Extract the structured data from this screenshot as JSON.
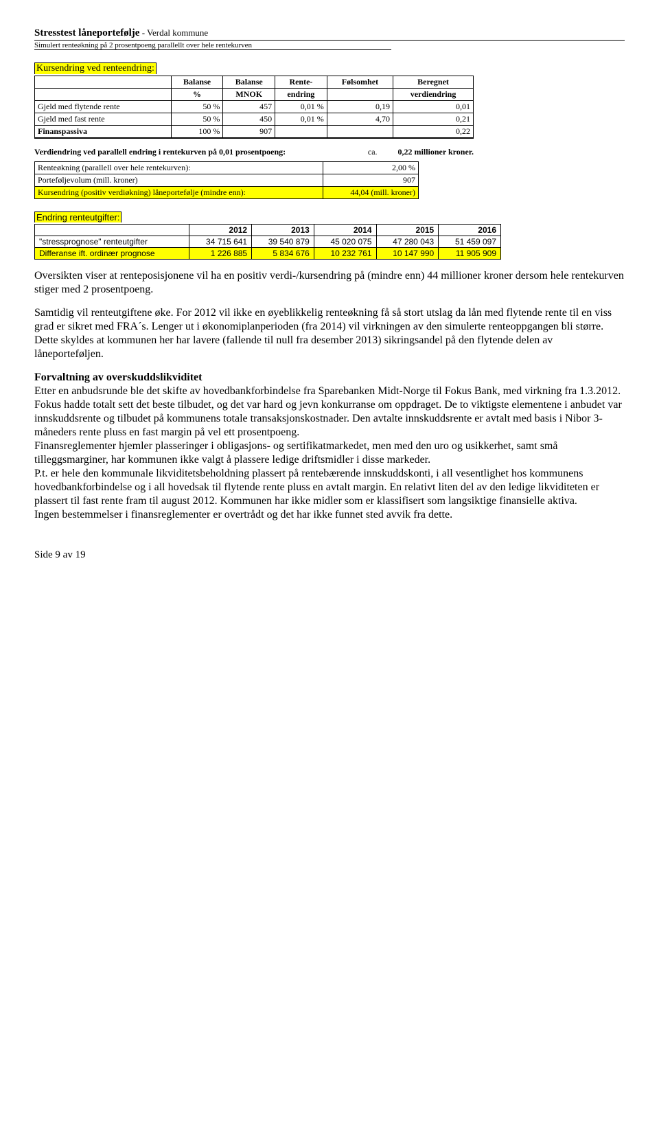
{
  "header": {
    "title_main": "Stresstest låneportefølje",
    "title_sub": " - Verdal kommune",
    "subtitle": "Simulert renteøkning på 2 prosentpoeng parallellt over hele rentekurven"
  },
  "kursendring": {
    "heading": "Kursendring ved renteendring:",
    "cols1": [
      "Balanse",
      "Balanse",
      "Rente-",
      "Følsomhet",
      "Beregnet"
    ],
    "cols2": [
      "%",
      "MNOK",
      "endring",
      "",
      "verdiendring"
    ],
    "rows": [
      {
        "label": "Gjeld med flytende rente",
        "c": [
          "50 %",
          "457",
          "0,01 %",
          "0,19",
          "0,01"
        ]
      },
      {
        "label": "Gjeld med fast rente",
        "c": [
          "50 %",
          "450",
          "0,01 %",
          "4,70",
          "0,21"
        ]
      }
    ],
    "finans": {
      "label": "Finanspassiva",
      "c": [
        "100 %",
        "907",
        "",
        "",
        "0,22"
      ]
    }
  },
  "verdiendring": {
    "label": "Verdiendring ved parallell endring i rentekurven på 0,01 prosentpoeng:",
    "ca": "ca.",
    "val": "0,22 millioner kroner."
  },
  "params": {
    "rows": [
      {
        "label": "Renteøkning (parallell over hele rentekurven):",
        "val": "2,00 %"
      },
      {
        "label": "Porteføljevolum (mill. kroner)",
        "val": "907"
      }
    ],
    "kurs": {
      "label": "Kursendring (positiv verdiøkning) låneportefølje (mindre enn):",
      "val": "44,04 (mill. kroner)"
    }
  },
  "endring": {
    "heading": "Endring renteutgifter:",
    "years": [
      "2012",
      "2013",
      "2014",
      "2015",
      "2016"
    ],
    "rows": [
      {
        "label": "\"stressprognose\" renteutgifter",
        "v": [
          "34 715 641",
          "39 540 879",
          "45 020 075",
          "47 280 043",
          "51 459 097"
        ],
        "yl": false
      },
      {
        "label": "Differanse ift. ordinær prognose",
        "v": [
          "1 226 885",
          "5 834 676",
          "10 232 761",
          "10 147 990",
          "11 905 909"
        ],
        "yl": true
      }
    ]
  },
  "body": {
    "p1": "Oversikten viser at renteposisjonene vil ha en positiv verdi-/kursendring på (mindre enn) 44 millioner kroner dersom hele rentekurven stiger med 2 prosentpoeng.",
    "p2": "Samtidig vil renteutgiftene øke. For 2012 vil ikke en øyeblikkelig renteøkning få så stort utslag da lån med flytende rente til en viss grad er sikret med FRA´s. Lenger ut i økonomiplanperioden (fra 2014) vil virkningen av den simulerte renteoppgangen bli større. Dette skyldes at kommunen her har lavere (fallende til null fra desember 2013) sikringsandel på den flytende delen av låneporteføljen.",
    "h3": "Forvaltning av overskuddslikviditet",
    "p3": "Etter en anbudsrunde ble det skifte av hovedbankforbindelse fra Sparebanken Midt-Norge til Fokus Bank, med virkning fra 1.3.2012. Fokus hadde totalt sett det beste tilbudet, og det var hard og jevn konkurranse om oppdraget. De to viktigste elementene i anbudet var innskuddsrente og tilbudet på kommunens totale transaksjonskostnader. Den avtalte innskuddsrente er avtalt med basis i Nibor 3-måneders rente pluss en fast margin på vel ett prosentpoeng.",
    "p4": "Finansreglementer hjemler plasseringer i obligasjons- og sertifikatmarkedet, men med den uro og usikkerhet, samt små tilleggsmarginer, har kommunen ikke valgt å plassere ledige driftsmidler i disse markeder.",
    "p5": "P.t. er hele den kommunale likviditetsbeholdning plassert på rentebærende innskuddskonti, i all vesentlighet hos kommunens hovedbankforbindelse og i all hovedsak til flytende rente pluss en avtalt margin. En relativt liten del av den ledige likviditeten er plassert til fast rente fram til august 2012. Kommunen har ikke midler som er klassifisert som langsiktige finansielle aktiva.",
    "p6": "Ingen bestemmelser i finansreglementer er overtrådt og det har ikke funnet sted avvik fra dette."
  },
  "footer": {
    "page": "Side 9 av 19"
  }
}
